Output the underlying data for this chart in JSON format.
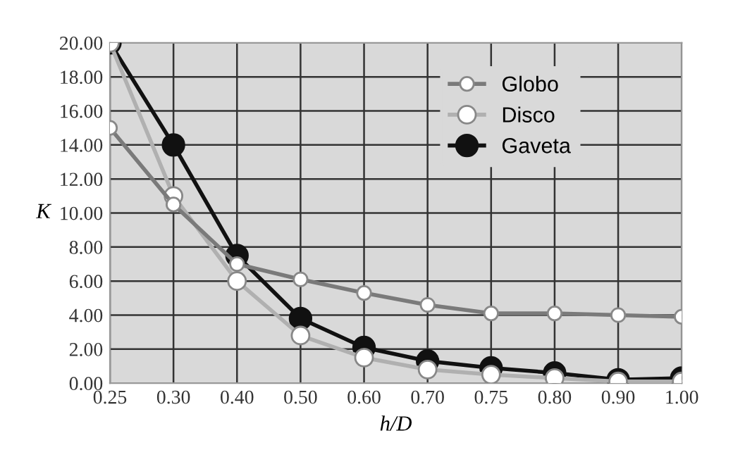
{
  "chart_data": {
    "type": "line",
    "xlabel": "h/D",
    "ylabel": "K",
    "categories": [
      "0.25",
      "0.30",
      "0.40",
      "0.50",
      "0.60",
      "0.70",
      "0.75",
      "0.80",
      "0.90",
      "1.00"
    ],
    "series": [
      {
        "name": "Globo",
        "color": "#7a7a7a",
        "marker": "circle",
        "values": [
          15.0,
          10.5,
          7.0,
          6.1,
          5.3,
          4.6,
          4.1,
          4.1,
          4.0,
          3.9
        ]
      },
      {
        "name": "Disco",
        "color": "#b0b0b0",
        "marker": "circle",
        "values": [
          20.0,
          11.0,
          6.0,
          2.8,
          1.5,
          0.8,
          0.5,
          0.3,
          0.1,
          0.1
        ]
      },
      {
        "name": "Gaveta",
        "color": "#111111",
        "marker": "circle",
        "values": [
          20.0,
          14.0,
          7.5,
          3.8,
          2.1,
          1.3,
          0.9,
          0.6,
          0.2,
          0.3
        ]
      }
    ],
    "ylim": [
      0,
      20
    ],
    "yticks": [
      {
        "value": 0,
        "label": "0.00"
      },
      {
        "value": 2,
        "label": "2.00"
      },
      {
        "value": 4,
        "label": "4.00"
      },
      {
        "value": 6,
        "label": "6.00"
      },
      {
        "value": 8,
        "label": "8.00"
      },
      {
        "value": 10,
        "label": "10.00"
      },
      {
        "value": 12,
        "label": "12.00"
      },
      {
        "value": 14,
        "label": "14.00"
      },
      {
        "value": 16,
        "label": "16.00"
      },
      {
        "value": 18,
        "label": "18.00"
      },
      {
        "value": 20,
        "label": "20.00"
      }
    ],
    "grid": true,
    "legend": "top right"
  }
}
